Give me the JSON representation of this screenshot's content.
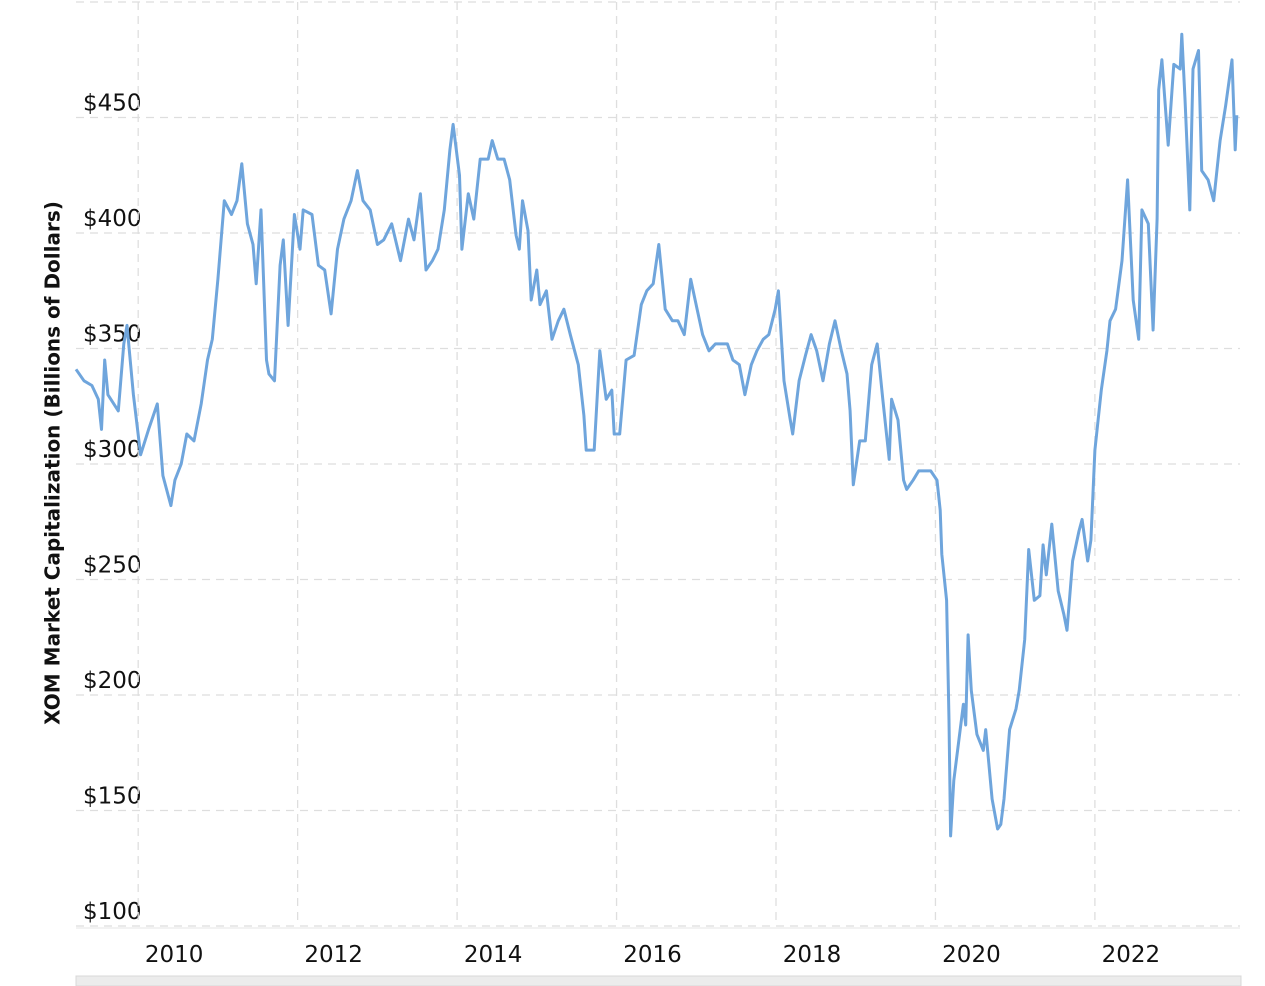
{
  "chart_data": {
    "type": "line",
    "y_label": "XOM Market Capitalization (Billions of Dollars)",
    "x": [
      2009.22,
      2009.32,
      2009.42,
      2009.5,
      2009.54,
      2009.58,
      2009.62,
      2009.75,
      2009.82,
      2009.86,
      2009.94,
      2010.03,
      2010.13,
      2010.24,
      2010.31,
      2010.41,
      2010.46,
      2010.54,
      2010.61,
      2010.7,
      2010.79,
      2010.87,
      2010.93,
      2011.0,
      2011.08,
      2011.17,
      2011.24,
      2011.3,
      2011.37,
      2011.44,
      2011.48,
      2011.54,
      2011.61,
      2011.64,
      2011.71,
      2011.78,
      2011.82,
      2011.88,
      2011.96,
      2012.03,
      2012.07,
      2012.18,
      2012.26,
      2012.34,
      2012.42,
      2012.5,
      2012.58,
      2012.67,
      2012.75,
      2012.82,
      2012.91,
      2013.0,
      2013.08,
      2013.18,
      2013.29,
      2013.39,
      2013.46,
      2013.54,
      2013.61,
      2013.69,
      2013.76,
      2013.84,
      2013.91,
      2013.95,
      2014.03,
      2014.06,
      2014.14,
      2014.21,
      2014.29,
      2014.39,
      2014.44,
      2014.51,
      2014.59,
      2014.66,
      2014.74,
      2014.78,
      2014.82,
      2014.89,
      2014.93,
      2015.0,
      2015.04,
      2015.12,
      2015.19,
      2015.27,
      2015.34,
      2015.42,
      2015.52,
      2015.59,
      2015.62,
      2015.72,
      2015.79,
      2015.87,
      2015.94,
      2015.97,
      2016.04,
      2016.12,
      2016.22,
      2016.31,
      2016.38,
      2016.46,
      2016.53,
      2016.61,
      2016.7,
      2016.77,
      2016.85,
      2016.93,
      2017.01,
      2017.08,
      2017.16,
      2017.24,
      2017.31,
      2017.39,
      2017.46,
      2017.54,
      2017.61,
      2017.69,
      2017.76,
      2017.84,
      2017.91,
      2017.99,
      2018.03,
      2018.1,
      2018.18,
      2018.21,
      2018.29,
      2018.37,
      2018.44,
      2018.51,
      2018.59,
      2018.67,
      2018.74,
      2018.82,
      2018.89,
      2018.93,
      2018.97,
      2019.05,
      2019.12,
      2019.2,
      2019.27,
      2019.34,
      2019.42,
      2019.45,
      2019.53,
      2019.6,
      2019.64,
      2019.72,
      2019.79,
      2019.87,
      2019.94,
      2020.02,
      2020.06,
      2020.08,
      2020.14,
      2020.17,
      2020.19,
      2020.23,
      2020.31,
      2020.35,
      2020.38,
      2020.41,
      2020.45,
      2020.52,
      2020.6,
      2020.63,
      2020.71,
      2020.78,
      2020.82,
      2020.86,
      2020.93,
      2021.01,
      2021.05,
      2021.12,
      2021.17,
      2021.24,
      2021.31,
      2021.35,
      2021.39,
      2021.46,
      2021.54,
      2021.61,
      2021.65,
      2021.72,
      2021.8,
      2021.84,
      2021.91,
      2021.95,
      2022.0,
      2022.08,
      2022.15,
      2022.19,
      2022.26,
      2022.34,
      2022.41,
      2022.48,
      2022.55,
      2022.59,
      2022.67,
      2022.73,
      2022.78,
      2022.8,
      2022.84,
      2022.92,
      2022.99,
      2023.07,
      2023.09,
      2023.13,
      2023.19,
      2023.23,
      2023.3,
      2023.34,
      2023.42,
      2023.49,
      2023.57,
      2023.64,
      2023.72,
      2023.76,
      2023.78
    ],
    "series": [
      {
        "name": "XOM",
        "color": "#6fa5dc",
        "values": [
          341,
          336,
          334,
          328,
          315,
          345,
          330,
          323,
          352,
          360,
          330,
          304,
          315,
          326,
          295,
          282,
          293,
          300,
          313,
          310,
          326,
          345,
          354,
          380,
          414,
          408,
          414,
          430,
          404,
          395,
          378,
          410,
          345,
          339,
          336,
          386,
          397,
          360,
          408,
          393,
          410,
          408,
          386,
          384,
          365,
          393,
          406,
          414,
          427,
          414,
          410,
          395,
          397,
          404,
          388,
          406,
          397,
          417,
          384,
          388,
          393,
          410,
          436,
          447,
          425,
          393,
          417,
          406,
          432,
          432,
          440,
          432,
          432,
          423,
          399,
          393,
          414,
          401,
          371,
          384,
          369,
          375,
          354,
          362,
          367,
          356,
          343,
          321,
          306,
          306,
          349,
          328,
          332,
          313,
          313,
          345,
          347,
          369,
          375,
          378,
          395,
          367,
          362,
          362,
          356,
          380,
          367,
          356,
          349,
          352,
          352,
          352,
          345,
          343,
          330,
          343,
          349,
          354,
          356,
          367,
          375,
          336,
          319,
          313,
          336,
          347,
          356,
          349,
          336,
          352,
          362,
          349,
          339,
          323,
          291,
          310,
          310,
          343,
          352,
          328,
          302,
          328,
          319,
          293,
          289,
          293,
          297,
          297,
          297,
          293,
          280,
          261,
          241,
          189,
          139,
          163,
          185,
          196,
          187,
          226,
          202,
          183,
          176,
          185,
          155,
          142,
          144,
          155,
          185,
          194,
          202,
          224,
          263,
          241,
          243,
          265,
          252,
          274,
          245,
          235,
          228,
          258,
          271,
          276,
          258,
          267,
          306,
          332,
          349,
          362,
          367,
          388,
          423,
          371,
          354,
          410,
          404,
          358,
          406,
          462,
          475,
          438,
          473,
          471,
          486,
          458,
          410,
          471,
          479,
          427,
          423,
          414,
          440,
          455,
          475,
          436,
          451
        ]
      }
    ],
    "xlim": [
      2009.22,
      2023.82
    ],
    "xticks": [
      2010,
      2012,
      2014,
      2016,
      2018,
      2020,
      2022
    ],
    "ylim": [
      100,
      500
    ],
    "yticks": [
      {
        "value": 100,
        "label": "$100"
      },
      {
        "value": 150,
        "label": "$150"
      },
      {
        "value": 200,
        "label": "$200"
      },
      {
        "value": 250,
        "label": "$250"
      },
      {
        "value": 300,
        "label": "$300"
      },
      {
        "value": 350,
        "label": "$350"
      },
      {
        "value": 400,
        "label": "$400"
      },
      {
        "value": 450,
        "label": "$450"
      }
    ],
    "grid": true
  }
}
